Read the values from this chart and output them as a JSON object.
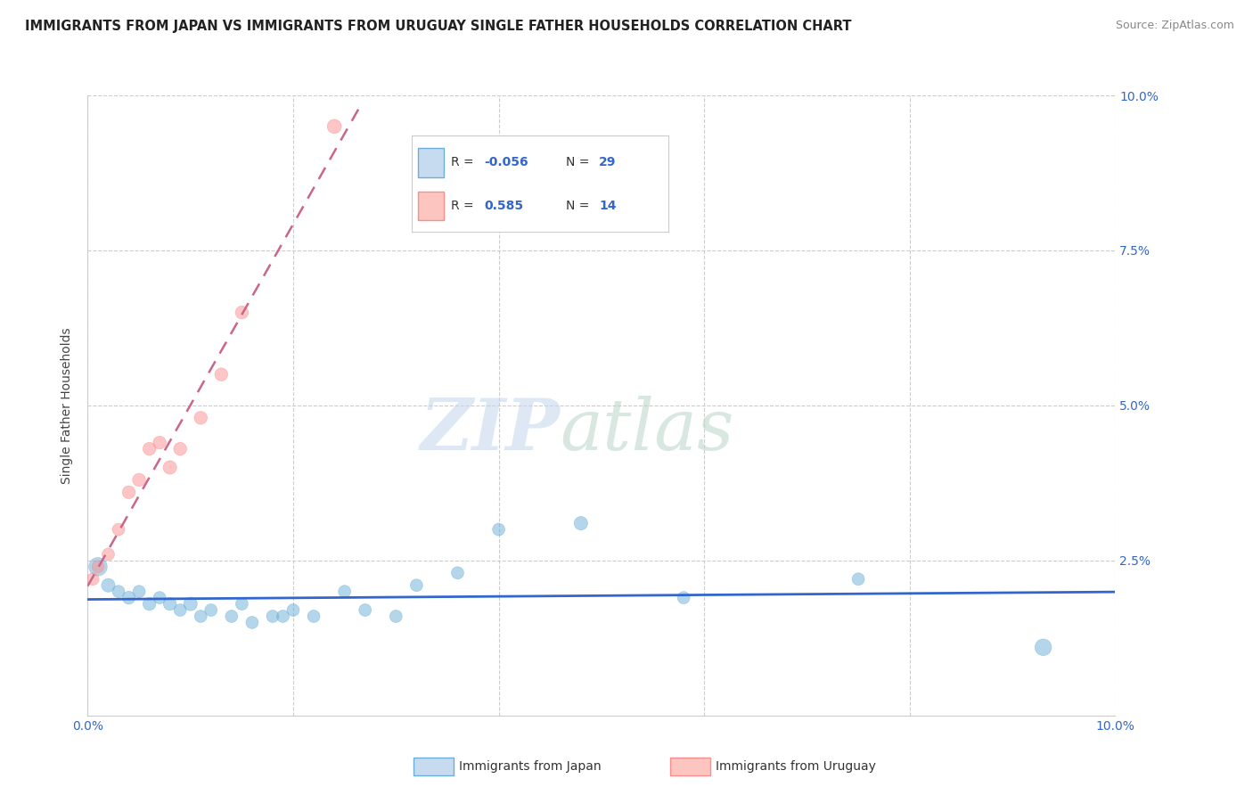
{
  "title": "IMMIGRANTS FROM JAPAN VS IMMIGRANTS FROM URUGUAY SINGLE FATHER HOUSEHOLDS CORRELATION CHART",
  "source": "Source: ZipAtlas.com",
  "ylabel": "Single Father Households",
  "xlim": [
    0.0,
    0.1
  ],
  "ylim": [
    0.0,
    0.1
  ],
  "legend_japan_label": "Immigrants from Japan",
  "legend_uruguay_label": "Immigrants from Uruguay",
  "R_japan": -0.056,
  "N_japan": 29,
  "R_uruguay": 0.585,
  "N_uruguay": 14,
  "color_japan": "#6baed6",
  "color_uruguay": "#fc8d8d",
  "color_japan_light": "#c6dbef",
  "color_uruguay_light": "#fcc5c0",
  "trendline_japan_color": "#3366cc",
  "trendline_uruguay_color": "#cc6688",
  "japan_x": [
    0.001,
    0.002,
    0.003,
    0.004,
    0.005,
    0.006,
    0.007,
    0.008,
    0.009,
    0.01,
    0.011,
    0.012,
    0.014,
    0.015,
    0.016,
    0.018,
    0.019,
    0.02,
    0.022,
    0.025,
    0.027,
    0.03,
    0.032,
    0.036,
    0.04,
    0.048,
    0.058,
    0.075,
    0.093
  ],
  "japan_y": [
    0.024,
    0.021,
    0.02,
    0.019,
    0.02,
    0.018,
    0.019,
    0.018,
    0.017,
    0.018,
    0.016,
    0.017,
    0.016,
    0.018,
    0.015,
    0.016,
    0.016,
    0.017,
    0.016,
    0.02,
    0.017,
    0.016,
    0.021,
    0.023,
    0.03,
    0.031,
    0.019,
    0.022,
    0.011
  ],
  "japan_size": [
    220,
    120,
    100,
    110,
    100,
    110,
    100,
    110,
    100,
    120,
    100,
    100,
    100,
    100,
    100,
    100,
    100,
    100,
    100,
    100,
    100,
    100,
    100,
    100,
    100,
    120,
    100,
    100,
    180
  ],
  "uruguay_x": [
    0.0005,
    0.001,
    0.002,
    0.003,
    0.004,
    0.005,
    0.006,
    0.007,
    0.008,
    0.009,
    0.011,
    0.013,
    0.015,
    0.024
  ],
  "uruguay_y": [
    0.022,
    0.024,
    0.026,
    0.03,
    0.036,
    0.038,
    0.043,
    0.044,
    0.04,
    0.043,
    0.048,
    0.055,
    0.065,
    0.095
  ],
  "uruguay_size": [
    100,
    100,
    100,
    100,
    110,
    110,
    110,
    110,
    120,
    110,
    110,
    110,
    110,
    130
  ]
}
